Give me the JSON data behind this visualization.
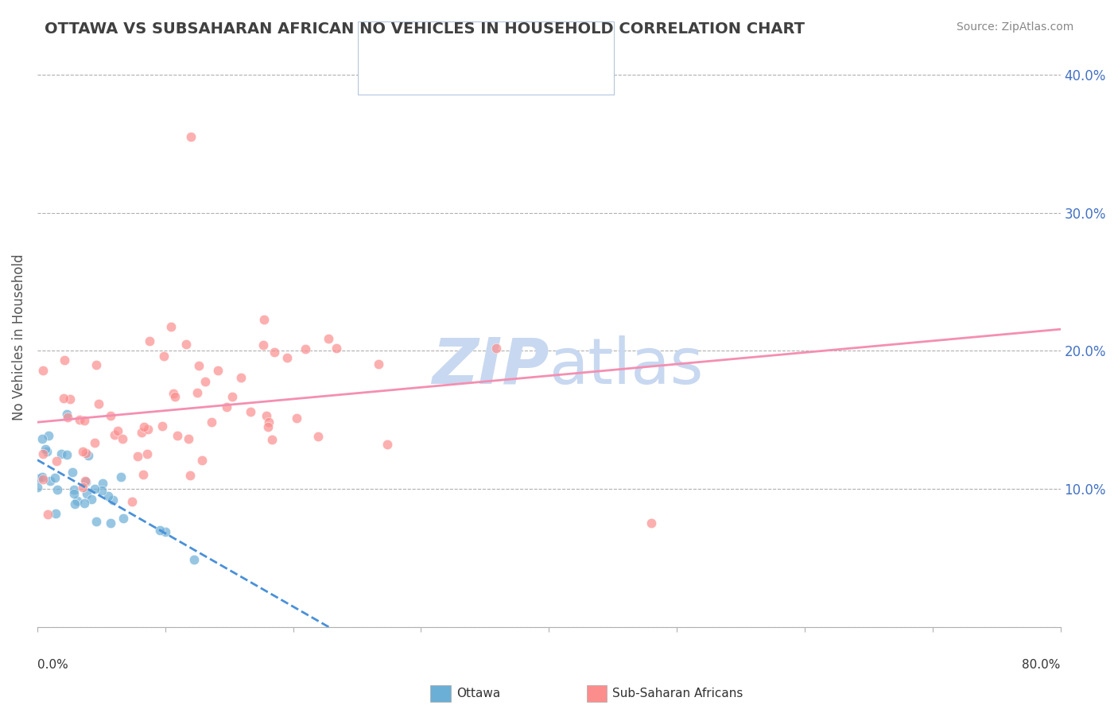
{
  "title": "OTTAWA VS SUBSAHARAN AFRICAN NO VEHICLES IN HOUSEHOLD CORRELATION CHART",
  "source": "Source: ZipAtlas.com",
  "ylabel": "No Vehicles in Household",
  "xlim": [
    0.0,
    0.8
  ],
  "ylim": [
    0.0,
    0.42
  ],
  "ottawa_color": "#6baed6",
  "subsaharan_color": "#fc8d8d",
  "trendline1_color": "#4a90d9",
  "trendline2_color": "#f48fb1",
  "watermark_color": "#c8d8f0",
  "ytick_values": [
    0.0,
    0.1,
    0.2,
    0.3,
    0.4
  ],
  "ytick_labels": [
    "",
    "10.0%",
    "20.0%",
    "30.0%",
    "40.0%"
  ],
  "xtick_values": [
    0.0,
    0.1,
    0.2,
    0.3,
    0.4,
    0.5,
    0.6,
    0.7,
    0.8
  ]
}
